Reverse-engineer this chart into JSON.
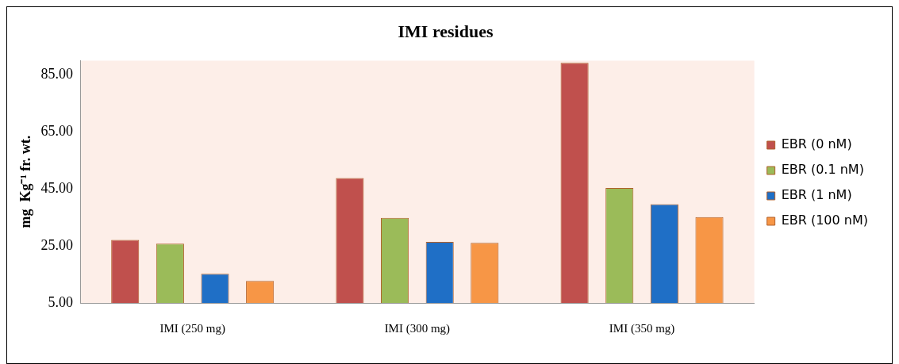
{
  "chart_data": {
    "type": "bar",
    "title": "IMI residues",
    "ylabel": "mg  Kg⁻¹ fr. wt.",
    "categories": [
      "IMI (250 mg)",
      "IMI (300 mg)",
      "IMI (350 mg)"
    ],
    "series": [
      {
        "name": "EBR (0 nM)",
        "color": "#c0504d",
        "values": [
          27.1,
          48.8,
          89.2
        ]
      },
      {
        "name": "EBR (0.1 nM)",
        "color": "#9bbb59",
        "values": [
          25.8,
          34.8,
          45.3
        ]
      },
      {
        "name": "EBR (1 nM)",
        "color": "#1f6fc6",
        "values": [
          15.2,
          26.4,
          39.6
        ]
      },
      {
        "name": "EBR (100 nM)",
        "color": "#f79646",
        "values": [
          12.7,
          26.1,
          35.1
        ]
      }
    ],
    "ylim": [
      5,
      90
    ],
    "yticks": [
      {
        "value": 5,
        "label": "5.00"
      },
      {
        "value": 25,
        "label": "25.00"
      },
      {
        "value": 45,
        "label": "45.00"
      },
      {
        "value": 65,
        "label": "65.00"
      },
      {
        "value": 85,
        "label": "85.00"
      }
    ],
    "grid": false,
    "legend": "right"
  }
}
